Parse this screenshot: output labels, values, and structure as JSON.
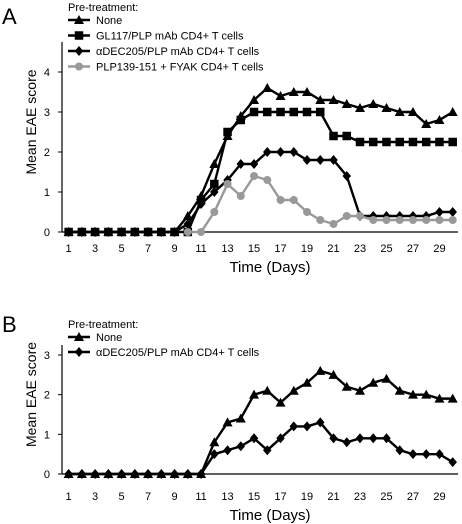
{
  "chart_data": [
    {
      "panel": "A",
      "type": "line",
      "ylabel": "Mean EAE score",
      "xlabel": "Time (Days)",
      "legend_title": "Pre-treatment:",
      "legend_position": "top-left",
      "xlim": [
        1,
        30
      ],
      "ylim": [
        0,
        4.5
      ],
      "x_ticks": [
        1,
        3,
        5,
        7,
        9,
        11,
        13,
        15,
        17,
        19,
        21,
        23,
        25,
        27,
        29
      ],
      "y_ticks": [
        0,
        1,
        2,
        3,
        4
      ],
      "x": [
        1,
        2,
        3,
        4,
        5,
        6,
        7,
        8,
        9,
        10,
        11,
        12,
        13,
        14,
        15,
        16,
        17,
        18,
        19,
        20,
        21,
        22,
        23,
        24,
        25,
        26,
        27,
        28,
        29,
        30
      ],
      "series": [
        {
          "name": "None",
          "marker": "triangle",
          "color": "#000000",
          "values": [
            0,
            0,
            0,
            0,
            0,
            0,
            0,
            0,
            0,
            0.4,
            0.9,
            1.7,
            2.4,
            2.9,
            3.3,
            3.6,
            3.4,
            3.5,
            3.5,
            3.3,
            3.3,
            3.2,
            3.1,
            3.2,
            3.1,
            3.0,
            3.0,
            2.7,
            2.8,
            3.0
          ]
        },
        {
          "name": "GL117/PLP mAb CD4+ T cells",
          "marker": "square",
          "color": "#000000",
          "values": [
            0,
            0,
            0,
            0,
            0,
            0,
            0,
            0,
            0,
            0,
            0.8,
            1.2,
            2.5,
            2.8,
            3.0,
            3.0,
            3.0,
            3.0,
            3.0,
            3.0,
            2.4,
            2.4,
            2.25,
            2.25,
            2.25,
            2.25,
            2.25,
            2.25,
            2.25,
            2.25
          ]
        },
        {
          "name": "αDEC205/PLP mAb CD4+ T cells",
          "marker": "diamond",
          "color": "#000000",
          "values": [
            0,
            0,
            0,
            0,
            0,
            0,
            0,
            0,
            0,
            0.2,
            0.7,
            1.0,
            1.3,
            1.7,
            1.7,
            2.0,
            2.0,
            2.0,
            1.8,
            1.8,
            1.8,
            1.4,
            0.4,
            0.4,
            0.4,
            0.4,
            0.4,
            0.4,
            0.5,
            0.5
          ]
        },
        {
          "name": "PLP139-151 + FYAK CD4+ T cells",
          "marker": "circle",
          "color": "#999999",
          "values": [
            null,
            null,
            null,
            null,
            null,
            null,
            null,
            null,
            null,
            0,
            0,
            0.5,
            1.2,
            0.9,
            1.4,
            1.3,
            0.8,
            0.8,
            0.5,
            0.3,
            0.2,
            0.4,
            0.4,
            0.3,
            0.3,
            0.3,
            0.3,
            0.3,
            0.3,
            0.3
          ]
        }
      ]
    },
    {
      "panel": "B",
      "type": "line",
      "ylabel": "Mean EAE score",
      "xlabel": "Time (Days)",
      "legend_title": "Pre-treatment:",
      "legend_position": "top-left",
      "xlim": [
        1,
        30
      ],
      "ylim": [
        0,
        3
      ],
      "x_ticks": [
        1,
        3,
        5,
        7,
        9,
        11,
        13,
        15,
        17,
        19,
        21,
        23,
        25,
        27,
        29
      ],
      "y_ticks": [
        0,
        1,
        2,
        3
      ],
      "x": [
        1,
        2,
        3,
        4,
        5,
        6,
        7,
        8,
        9,
        10,
        11,
        12,
        13,
        14,
        15,
        16,
        17,
        18,
        19,
        20,
        21,
        22,
        23,
        24,
        25,
        26,
        27,
        28,
        29,
        30
      ],
      "series": [
        {
          "name": "None",
          "marker": "triangle",
          "color": "#000000",
          "values": [
            0,
            0,
            0,
            0,
            0,
            0,
            0,
            0,
            0,
            0,
            0,
            0.8,
            1.3,
            1.4,
            2.0,
            2.1,
            1.8,
            2.1,
            2.3,
            2.6,
            2.5,
            2.2,
            2.1,
            2.3,
            2.4,
            2.1,
            2.0,
            2.0,
            1.9,
            1.9
          ]
        },
        {
          "name": "αDEC205/PLP mAb CD4+ T cells",
          "marker": "diamond",
          "color": "#000000",
          "values": [
            0,
            0,
            0,
            0,
            0,
            0,
            0,
            0,
            0,
            0,
            0,
            0.5,
            0.6,
            0.7,
            0.9,
            0.6,
            0.9,
            1.2,
            1.2,
            1.3,
            0.9,
            0.8,
            0.9,
            0.9,
            0.9,
            0.6,
            0.5,
            0.5,
            0.5,
            0.3
          ]
        }
      ]
    }
  ]
}
